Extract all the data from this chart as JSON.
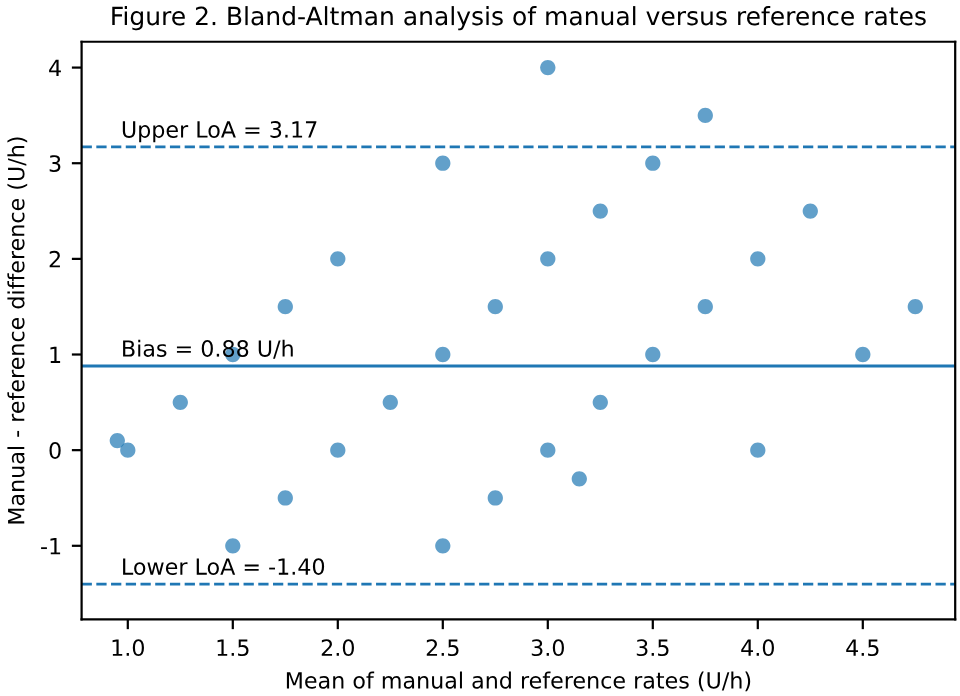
{
  "chart_data": {
    "type": "scatter",
    "title": "Figure 2. Bland-Altman analysis of manual versus reference rates",
    "xlabel": "Mean of manual and reference rates (U/h)",
    "ylabel": "Manual - reference difference (U/h)",
    "x": [
      0.95,
      1.0,
      1.25,
      1.5,
      1.5,
      1.75,
      1.75,
      2.0,
      2.0,
      2.25,
      2.5,
      2.5,
      2.5,
      2.75,
      2.75,
      3.0,
      3.0,
      3.0,
      3.15,
      3.25,
      3.25,
      3.5,
      3.5,
      3.75,
      3.75,
      4.0,
      4.0,
      4.25,
      4.5,
      4.75
    ],
    "series": [
      {
        "color": "#1f77b4",
        "values": [
          0.1,
          0.0,
          0.5,
          1.0,
          -1.0,
          1.5,
          -0.5,
          2.0,
          0.0,
          0.5,
          3.0,
          1.0,
          -1.0,
          1.5,
          -0.5,
          4.0,
          2.0,
          0.0,
          -0.3,
          2.5,
          0.5,
          3.0,
          1.0,
          3.5,
          1.5,
          2.0,
          0.0,
          2.5,
          1.0,
          1.5
        ]
      }
    ],
    "xlim": [
      0.78,
      4.94
    ],
    "ylim": [
      -1.77,
      4.27
    ],
    "xticks": [
      {
        "value": 1,
        "label": "1.0"
      },
      1.5,
      {
        "value": 2,
        "label": "2.0"
      },
      2.5,
      {
        "value": 3,
        "label": "3.0"
      },
      3.5,
      {
        "value": 4,
        "label": "4.0"
      },
      4.5
    ],
    "yticks": [
      -1,
      0,
      1,
      2,
      3,
      4
    ],
    "marker": "circle",
    "grid": false,
    "legend": false,
    "ref_lines": [
      {
        "axis": "y",
        "value": 3.17,
        "label": "Upper LoA = 3.17",
        "color": "#1f77b4",
        "line_style": "dashed"
      },
      {
        "axis": "y",
        "value": 0.88,
        "label": "Bias = 0.88 U/h",
        "color": "#1f77b4",
        "line_style": "solid"
      },
      {
        "axis": "y",
        "value": -1.4,
        "label": "Lower LoA = -1.40",
        "color": "#1f77b4",
        "line_style": "dashed"
      }
    ]
  }
}
